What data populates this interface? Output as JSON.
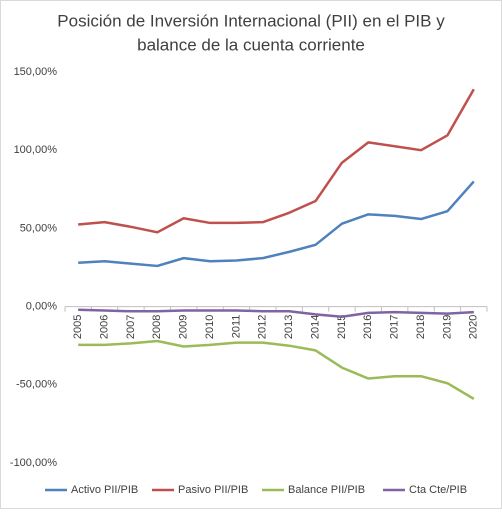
{
  "chart_data": {
    "type": "line",
    "title": [
      "Posición de Inversión Internacional (PII) en el PIB y",
      "balance de la cuenta corriente"
    ],
    "categories": [
      "2005",
      "2006",
      "2007",
      "2008",
      "2009",
      "2010",
      "2011",
      "2012",
      "2013",
      "2014",
      "2015",
      "2016",
      "2017",
      "2018",
      "2019",
      "2020"
    ],
    "series": [
      {
        "name": "Activo PII/PIB",
        "color": "#4f81bd",
        "values": [
          28,
          29,
          27.5,
          26,
          31,
          29,
          29.5,
          31,
          35,
          39.5,
          53,
          59,
          58,
          56,
          61,
          80
        ]
      },
      {
        "name": "Pasivo PII/PIB",
        "color": "#c0504d",
        "values": [
          52.5,
          54,
          51,
          47.5,
          56.5,
          53.5,
          53.5,
          54,
          60,
          67.5,
          92,
          105,
          102.5,
          100,
          109.5,
          139
        ]
      },
      {
        "name": "Balance PII/PIB",
        "color": "#9bbb59",
        "values": [
          -24.5,
          -24.5,
          -23.5,
          -22,
          -25.5,
          -24.5,
          -23,
          -23,
          -25,
          -28,
          -39,
          -46,
          -44.5,
          -44.5,
          -49,
          -59
        ]
      },
      {
        "name": "Cta Cte/PIB",
        "color": "#8064a2",
        "values": [
          -2,
          -2.5,
          -3,
          -3,
          -2.5,
          -2.5,
          -2.5,
          -3,
          -3,
          -5,
          -6.5,
          -4,
          -3.5,
          -4,
          -4.5,
          -3.5
        ]
      }
    ],
    "ylim": [
      -100,
      150
    ],
    "yticks": [
      {
        "value": -100,
        "label": "-100,00%"
      },
      {
        "value": -50,
        "label": "-50,00%"
      },
      {
        "value": 0,
        "label": "0,00%"
      },
      {
        "value": 50,
        "label": "50,00%"
      },
      {
        "value": 100,
        "label": "100,00%"
      },
      {
        "value": 150,
        "label": "150,00%"
      }
    ],
    "grid": false,
    "legend": "bottom"
  }
}
